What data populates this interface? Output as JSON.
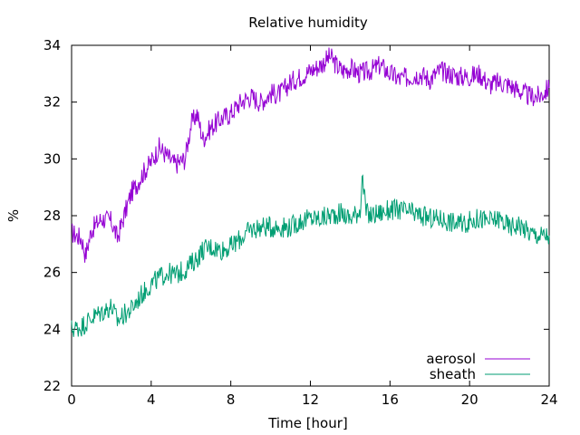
{
  "chart_data": {
    "type": "line",
    "title": "Relative humidity",
    "xlabel": "Time [hour]",
    "ylabel": "%",
    "xlim": [
      0,
      24
    ],
    "ylim": [
      22,
      34
    ],
    "x_ticks": [
      "0",
      "4",
      "8",
      "12",
      "16",
      "20",
      "24"
    ],
    "y_ticks": [
      "22",
      "24",
      "26",
      "28",
      "30",
      "32",
      "34"
    ],
    "grid": false,
    "legend_position": "bottom-right",
    "series": [
      {
        "name": "aerosol",
        "color": "#9400d3",
        "x": [
          0,
          0.5,
          0.7,
          1,
          1.5,
          2,
          2.3,
          2.6,
          3,
          3.2,
          3.5,
          4,
          4.4,
          4.8,
          5.2,
          5.7,
          6,
          6.3,
          6.6,
          7,
          7.5,
          8,
          8.5,
          9,
          9.5,
          10,
          10.5,
          11,
          11.5,
          12,
          12.5,
          13,
          13.3,
          13.6,
          14,
          14.5,
          15,
          15.5,
          16,
          16.5,
          17,
          17.5,
          18,
          18.5,
          19,
          19.5,
          20,
          20.5,
          21,
          21.5,
          22,
          22.5,
          23,
          23.5,
          24
        ],
        "y": [
          27.4,
          27.2,
          26.6,
          27.5,
          27.9,
          27.8,
          27.2,
          27.9,
          28.8,
          29.0,
          29.4,
          29.9,
          30.4,
          30.1,
          29.8,
          30.0,
          31.2,
          31.6,
          30.7,
          31.1,
          31.4,
          31.6,
          32.0,
          32.2,
          32.0,
          32.3,
          32.3,
          32.7,
          32.9,
          33.1,
          33.3,
          33.6,
          33.3,
          33.1,
          33.2,
          33.0,
          33.1,
          33.3,
          33.0,
          32.8,
          32.9,
          33.0,
          32.8,
          33.1,
          33.0,
          32.9,
          32.9,
          33.0,
          32.6,
          32.7,
          32.6,
          32.4,
          32.2,
          32.2,
          32.5
        ]
      },
      {
        "name": "sheath",
        "color": "#009e73",
        "x": [
          0,
          0.5,
          1,
          1.5,
          2,
          2.3,
          2.6,
          3,
          3.5,
          4,
          4.4,
          4.8,
          5.2,
          5.7,
          6,
          6.3,
          6.6,
          7,
          7.5,
          8,
          8.5,
          9,
          9.5,
          10,
          10.5,
          11,
          11.5,
          12,
          12.5,
          13,
          13.5,
          14,
          14.5,
          14.6,
          14.8,
          15,
          15.5,
          16,
          16.5,
          17,
          17.5,
          18,
          18.5,
          19,
          19.5,
          20,
          20.5,
          21,
          21.5,
          22,
          22.5,
          23,
          23.5,
          24
        ],
        "y": [
          24.0,
          24.1,
          24.4,
          24.6,
          24.8,
          24.3,
          24.5,
          24.7,
          25.2,
          25.6,
          25.8,
          26.0,
          25.9,
          26.1,
          26.3,
          26.5,
          26.8,
          26.9,
          26.8,
          26.9,
          27.2,
          27.5,
          27.6,
          27.6,
          27.6,
          27.6,
          27.8,
          27.9,
          27.9,
          28.0,
          28.1,
          27.9,
          28.2,
          29.4,
          28.1,
          28.0,
          28.1,
          28.2,
          28.2,
          28.1,
          28.0,
          27.9,
          27.9,
          27.8,
          27.7,
          27.8,
          27.9,
          27.8,
          27.9,
          27.6,
          27.7,
          27.4,
          27.3,
          27.3
        ]
      }
    ]
  }
}
